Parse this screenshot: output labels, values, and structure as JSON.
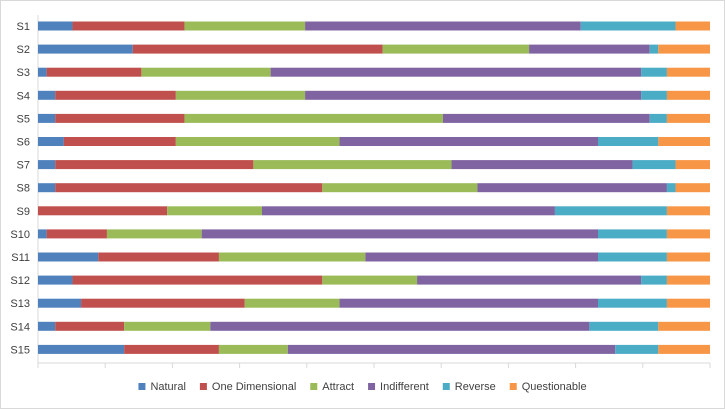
{
  "chart_data": {
    "type": "bar",
    "orientation": "horizontal",
    "stacked": "percent",
    "categories": [
      "S1",
      "S2",
      "S3",
      "S4",
      "S5",
      "S6",
      "S7",
      "S8",
      "S9",
      "S10",
      "S11",
      "S12",
      "S13",
      "S14",
      "S15"
    ],
    "series": [
      {
        "name": "Natural",
        "color": "#4f81bd",
        "values": [
          4,
          11,
          1,
          2,
          2,
          3,
          2,
          2,
          0,
          1,
          7,
          4,
          5,
          2,
          10
        ]
      },
      {
        "name": "One Dimensional",
        "color": "#c0504d",
        "values": [
          13,
          29,
          11,
          14,
          15,
          13,
          23,
          31,
          15,
          7,
          14,
          29,
          19,
          8,
          11
        ]
      },
      {
        "name": "Attract",
        "color": "#9bbb59",
        "values": [
          14,
          17,
          15,
          15,
          30,
          19,
          23,
          18,
          11,
          11,
          17,
          11,
          11,
          10,
          8
        ]
      },
      {
        "name": "Indifferent",
        "color": "#8064a2",
        "values": [
          32,
          14,
          43,
          39,
          24,
          30,
          21,
          22,
          34,
          46,
          27,
          26,
          30,
          44,
          38
        ]
      },
      {
        "name": "Reverse",
        "color": "#4bacc6",
        "values": [
          11,
          1,
          3,
          3,
          2,
          7,
          5,
          1,
          13,
          8,
          8,
          3,
          8,
          8,
          5
        ]
      },
      {
        "name": "Questionable",
        "color": "#f79646",
        "values": [
          4,
          6,
          5,
          5,
          5,
          6,
          4,
          4,
          5,
          5,
          5,
          5,
          5,
          6,
          6
        ]
      }
    ],
    "title": "",
    "xlabel": "",
    "ylabel": "",
    "grid": false,
    "legend_position": "bottom"
  }
}
